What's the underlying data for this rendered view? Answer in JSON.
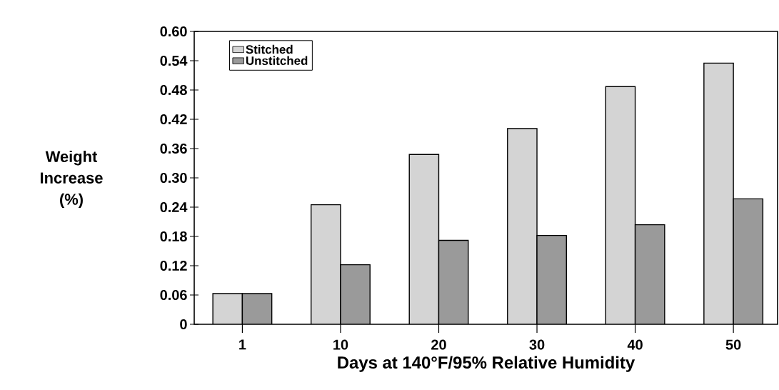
{
  "chart_data": {
    "type": "bar",
    "xlabel": "Days at 140°F/95% Relative Humidity",
    "ylabel": "Weight Increase (%)",
    "categories": [
      "1",
      "10",
      "20",
      "30",
      "40",
      "50"
    ],
    "series": [
      {
        "name": "Stitched",
        "color": "#d4d4d4",
        "values": [
          0.063,
          0.245,
          0.348,
          0.401,
          0.487,
          0.535
        ]
      },
      {
        "name": "Unstitched",
        "color": "#9a9a9a",
        "values": [
          0.063,
          0.122,
          0.172,
          0.182,
          0.204,
          0.257
        ]
      }
    ],
    "ylim": [
      0,
      0.6
    ],
    "yticks": [
      0,
      0.06,
      0.12,
      0.18,
      0.24,
      {
        "value": 0.3,
        "label": "0.30"
      },
      0.36,
      0.42,
      0.48,
      0.54,
      {
        "value": 0.6,
        "label": "0.60"
      }
    ],
    "legend": "top left",
    "grid": false
  }
}
